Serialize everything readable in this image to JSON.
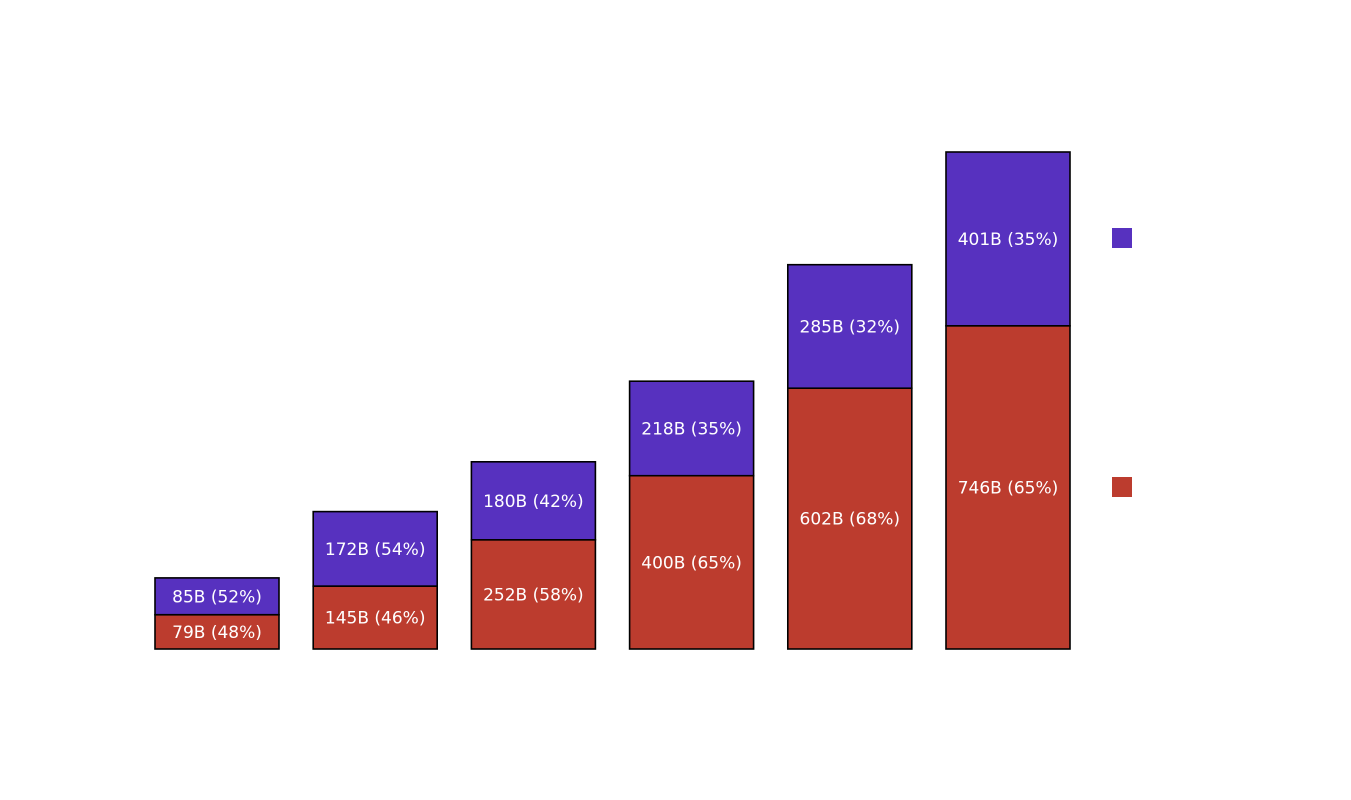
{
  "chart_data": {
    "type": "bar",
    "stacked": true,
    "title": "",
    "xlabel": "",
    "ylabel": "",
    "categories": [
      "",
      "",
      "",
      "",
      "",
      ""
    ],
    "series": [
      {
        "color": "#bc3c2e",
        "values": [
          79,
          145,
          252,
          400,
          602,
          746
        ],
        "labels": [
          "79B (48%)",
          "145B (46%)",
          "252B (58%)",
          "400B (65%)",
          "602B (68%)",
          "746B (65%)"
        ]
      },
      {
        "color": "#5731bf",
        "values": [
          85,
          172,
          180,
          218,
          285,
          401
        ],
        "labels": [
          "85B (52%)",
          "172B (54%)",
          "180B (42%)",
          "218B (35%)",
          "285B (32%)",
          "401B (35%)"
        ]
      }
    ],
    "grid": false,
    "legend": "right",
    "axes_visible": false
  }
}
